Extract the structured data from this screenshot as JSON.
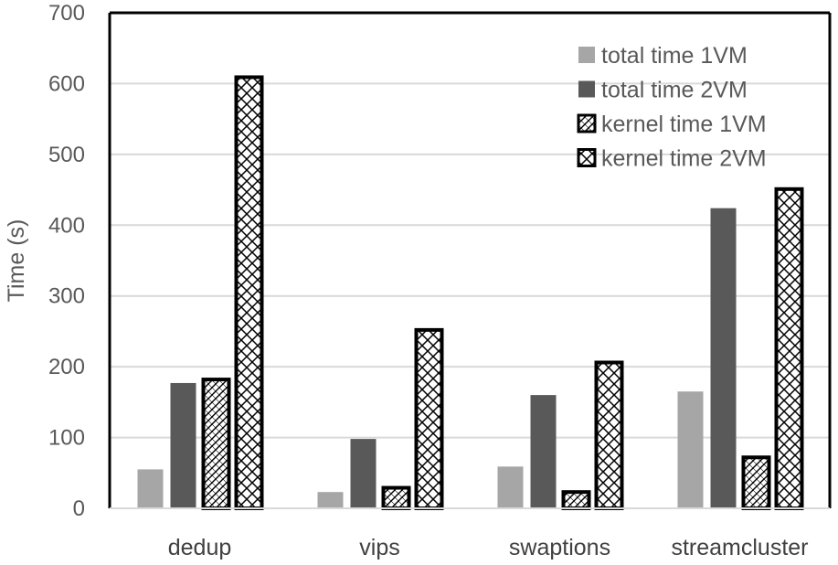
{
  "chart_data": {
    "type": "bar",
    "ylabel": "Time (s)",
    "xlabel": "",
    "ylim": [
      0,
      700
    ],
    "yticks": [
      0,
      100,
      200,
      300,
      400,
      500,
      600,
      700
    ],
    "grid": true,
    "legend_position": "top-right",
    "categories": [
      "dedup",
      "vips",
      "swaptions",
      "streamcluster"
    ],
    "series": [
      {
        "name": "total time 1VM",
        "values": [
          55,
          23,
          59,
          165
        ],
        "color": "#a6a6a6",
        "pattern": "solid"
      },
      {
        "name": "total time 2VM",
        "values": [
          177,
          98,
          160,
          424
        ],
        "color": "#595959",
        "pattern": "solid"
      },
      {
        "name": "kernel time 1VM",
        "values": [
          182,
          29,
          23,
          72
        ],
        "color": "#000000",
        "pattern": "diagonal-cross"
      },
      {
        "name": "kernel time 2VM",
        "values": [
          609,
          252,
          206,
          451
        ],
        "color": "#000000",
        "pattern": "zigzag"
      }
    ]
  }
}
